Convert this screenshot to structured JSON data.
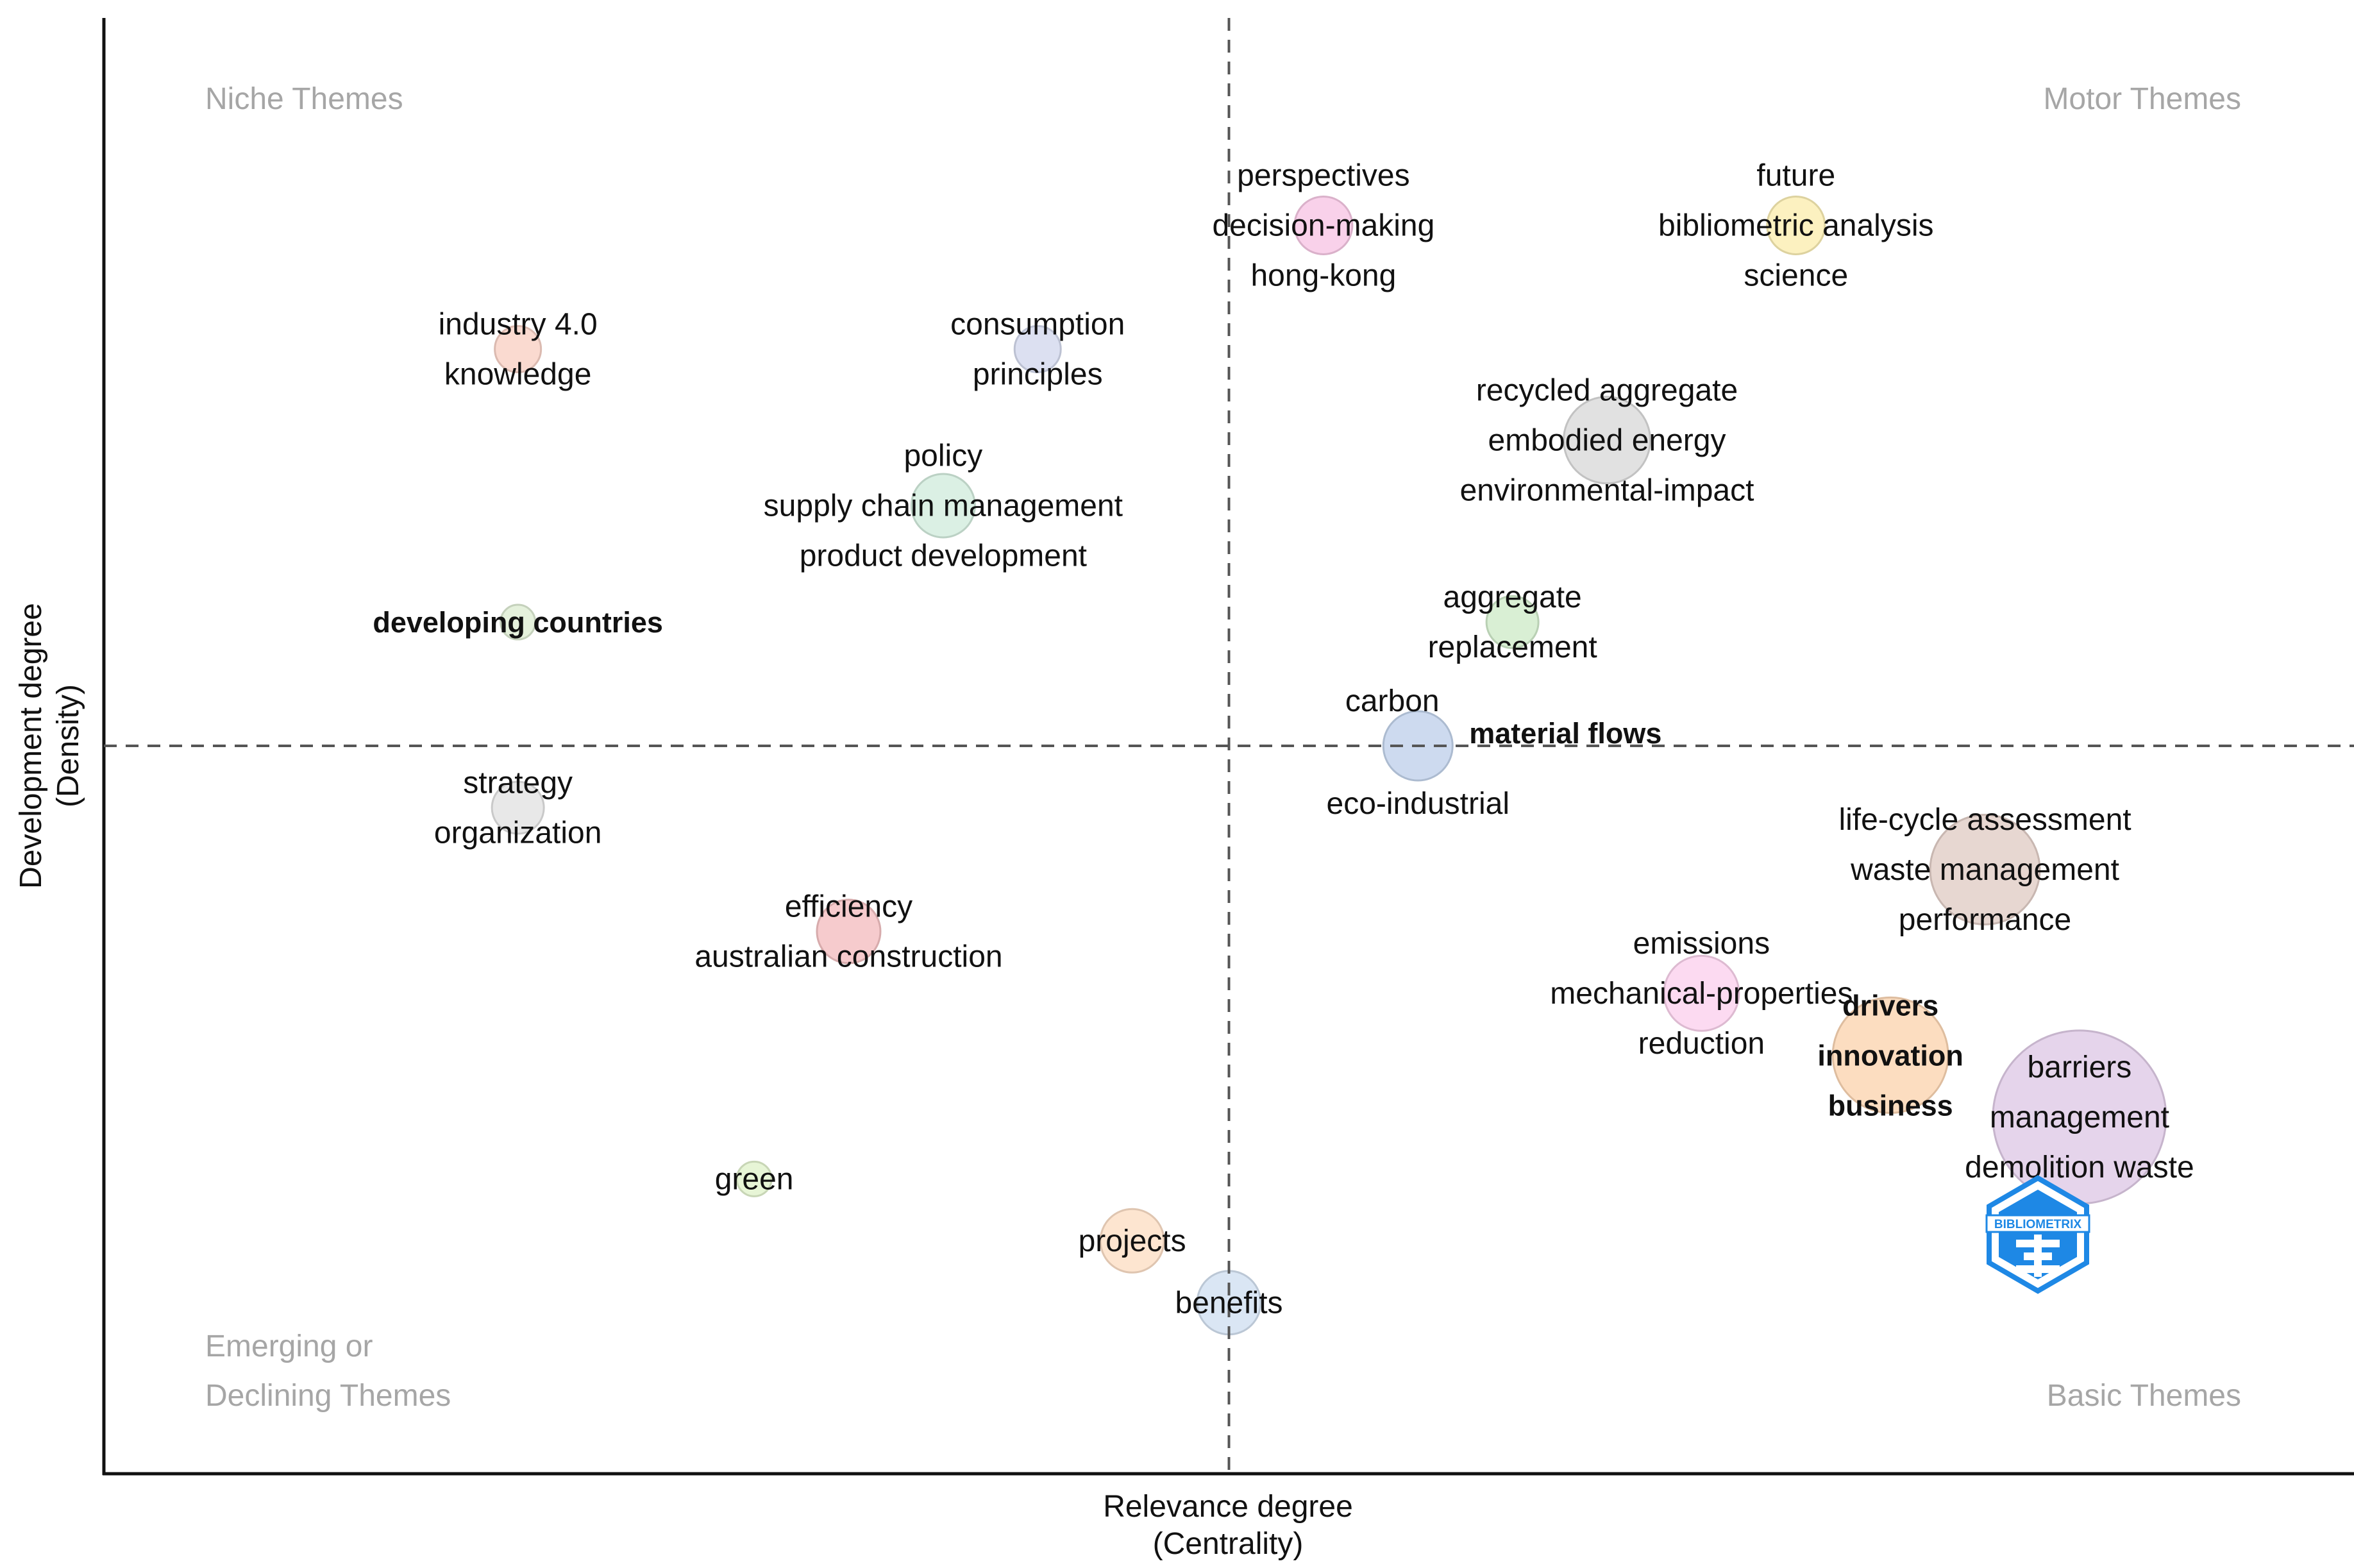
{
  "chart_data": {
    "type": "scatter",
    "subtype": "thematic-map",
    "xlabel": [
      "Relevance degree",
      "(Centrality)"
    ],
    "ylabel": [
      "Development degree",
      "(Density)"
    ],
    "xlim": [
      -1.0,
      1.0
    ],
    "ylim": [
      -1.0,
      1.0
    ],
    "x_divider": 0.0,
    "y_divider": 0.0,
    "quadrant_labels": {
      "top_left": [
        "Niche Themes"
      ],
      "top_right": [
        "Motor Themes"
      ],
      "bottom_left": [
        "Emerging or",
        "Declining Themes"
      ],
      "bottom_right": [
        "Basic Themes"
      ]
    },
    "themes": [
      {
        "name": "perspectives",
        "x": 0.084,
        "y": 0.715,
        "size": 0.5,
        "color": "#f8c9e6",
        "labels": [
          "perspectives",
          "decision-making",
          "hong-kong"
        ],
        "bold": false
      },
      {
        "name": "future",
        "x": 0.504,
        "y": 0.715,
        "size": 0.5,
        "color": "#fbefb5",
        "labels": [
          "future",
          "bibliometric analysis",
          "science"
        ],
        "bold": false
      },
      {
        "name": "industry 4.0",
        "x": -0.632,
        "y": 0.545,
        "size": 0.4,
        "color": "#f9d3c8",
        "labels": [
          "industry 4.0",
          "knowledge"
        ],
        "bold": false
      },
      {
        "name": "consumption",
        "x": -0.17,
        "y": 0.545,
        "size": 0.4,
        "color": "#d6dbef",
        "labels": [
          "consumption",
          "principles"
        ],
        "bold": false
      },
      {
        "name": "recycled aggregate",
        "x": 0.336,
        "y": 0.42,
        "size": 0.75,
        "color": "#dcdcdc",
        "labels": [
          "recycled aggregate",
          "embodied energy",
          "environmental-impact"
        ],
        "bold": false
      },
      {
        "name": "policy",
        "x": -0.254,
        "y": 0.33,
        "size": 0.55,
        "color": "#d5eddf",
        "labels": [
          "policy",
          "supply chain management",
          "product development"
        ],
        "bold": false
      },
      {
        "name": "developing countries",
        "x": -0.632,
        "y": 0.17,
        "size": 0.3,
        "color": "#e0eed6",
        "labels": [
          "developing countries"
        ],
        "bold": true
      },
      {
        "name": "aggregate",
        "x": 0.252,
        "y": 0.17,
        "size": 0.45,
        "color": "#d2eccd",
        "labels": [
          "aggregate",
          "replacement"
        ],
        "bold": false
      },
      {
        "name": "carbon",
        "x": 0.168,
        "y": 0.0,
        "size": 0.6,
        "color": "#c4d4ec",
        "labels": [
          "carbon",
          "material flows",
          "eco-industrial"
        ],
        "bold": false
      },
      {
        "name": "strategy",
        "x": -0.632,
        "y": -0.085,
        "size": 0.45,
        "color": "#e4e4e4",
        "labels": [
          "strategy",
          "organization"
        ],
        "bold": false
      },
      {
        "name": "life-cycle assessment",
        "x": 0.672,
        "y": -0.17,
        "size": 0.95,
        "color": "#e3d0c9",
        "labels": [
          "life-cycle assessment",
          "waste management",
          "performance"
        ],
        "bold": false
      },
      {
        "name": "efficiency",
        "x": -0.338,
        "y": -0.255,
        "size": 0.55,
        "color": "#f4c2c4",
        "labels": [
          "efficiency",
          "australian construction"
        ],
        "bold": false
      },
      {
        "name": "emissions",
        "x": 0.42,
        "y": -0.34,
        "size": 0.65,
        "color": "#fbd3ee",
        "labels": [
          "emissions",
          "mechanical-properties",
          "reduction"
        ],
        "bold": false
      },
      {
        "name": "drivers",
        "x": 0.588,
        "y": -0.425,
        "size": 1.0,
        "color": "#fcd7b5",
        "labels": [
          "drivers",
          "innovation",
          "business"
        ],
        "bold": true
      },
      {
        "name": "barriers",
        "x": 0.756,
        "y": -0.51,
        "size": 1.5,
        "color": "#e1cde8",
        "labels": [
          "barriers",
          "management",
          "demolition waste"
        ],
        "bold": false
      },
      {
        "name": "green",
        "x": -0.422,
        "y": -0.595,
        "size": 0.3,
        "color": "#e3f3cf",
        "labels": [
          "green"
        ],
        "bold": false
      },
      {
        "name": "projects",
        "x": -0.086,
        "y": -0.68,
        "size": 0.55,
        "color": "#fde0c8",
        "labels": [
          "projects"
        ],
        "bold": false
      },
      {
        "name": "benefits",
        "x": 0.0,
        "y": -0.765,
        "size": 0.55,
        "color": "#d4e2f2",
        "labels": [
          "benefits"
        ],
        "bold": false
      }
    ]
  },
  "logo": {
    "name": "bibliometrix-logo",
    "text": "BIBLIOMETRIX",
    "color": "#1e88e5"
  }
}
